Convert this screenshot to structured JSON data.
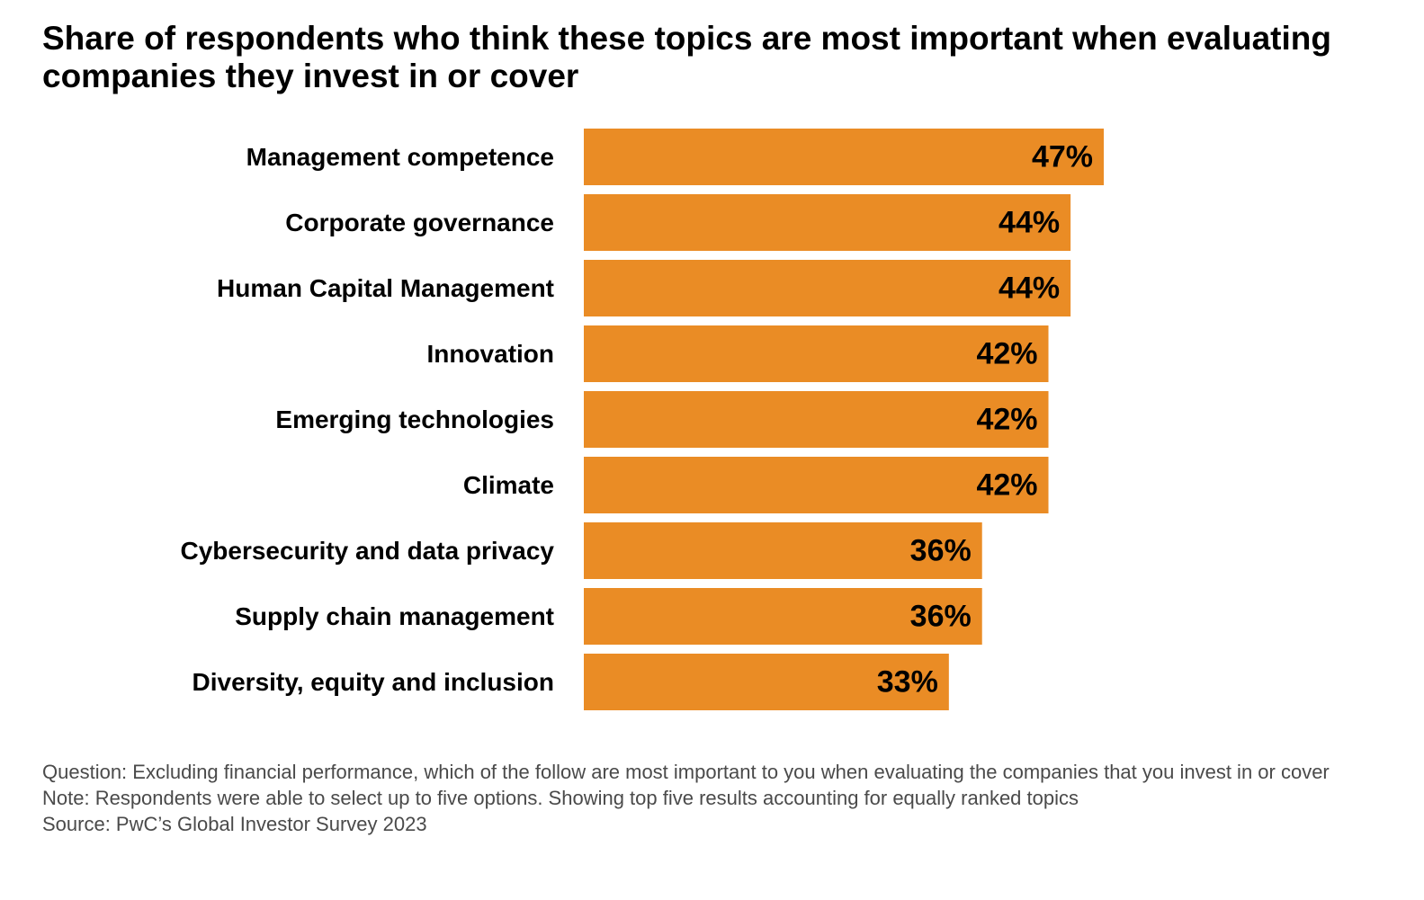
{
  "chart_data": {
    "type": "bar",
    "orientation": "horizontal",
    "title": "Share of respondents who think these topics are most important when evaluating companies they invest in or cover",
    "categories": [
      "Management competence",
      "Corporate governance",
      "Human Capital Management",
      "Innovation",
      "Emerging technologies",
      "Climate",
      "Cybersecurity and data privacy",
      "Supply chain management",
      "Diversity, equity and inclusion"
    ],
    "values": [
      47,
      44,
      44,
      42,
      42,
      42,
      36,
      36,
      33
    ],
    "value_labels": [
      "47%",
      "44%",
      "44%",
      "42%",
      "42%",
      "42%",
      "36%",
      "36%",
      "33%"
    ],
    "unit": "%",
    "xlim": [
      0,
      47
    ],
    "grid": false,
    "legend": "none",
    "bar_color": "#EA8C25"
  },
  "footnotes": {
    "question": "Question: Excluding financial performance, which of the follow are most important to you when evaluating the companies that you invest in or cover",
    "note": "Note: Respondents were able to select up to five options. Showing top five results accounting for equally ranked topics",
    "source": "Source: PwC’s Global Investor Survey 2023"
  }
}
